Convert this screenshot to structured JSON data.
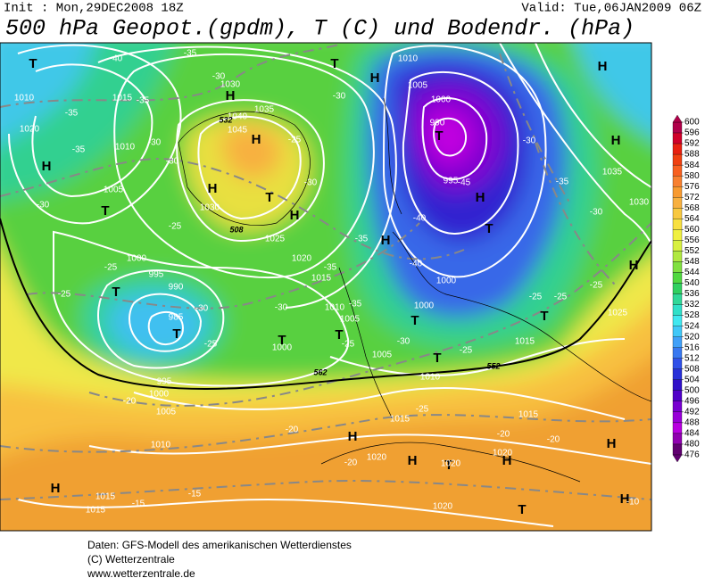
{
  "header": {
    "init": "Init : Mon,29DEC2008 18Z",
    "valid": "Valid: Tue,06JAN2009 06Z",
    "title": "500 hPa Geopot.(gpdm), T (C) und Bodendr. (hPa)"
  },
  "colorbar": {
    "ticks": [
      600,
      596,
      592,
      588,
      584,
      580,
      576,
      572,
      568,
      564,
      560,
      556,
      552,
      548,
      544,
      540,
      536,
      532,
      528,
      524,
      520,
      516,
      512,
      508,
      504,
      500,
      496,
      492,
      488,
      484,
      480,
      476
    ],
    "colors": [
      "#b0004a",
      "#d0002a",
      "#e82010",
      "#f04010",
      "#f86020",
      "#f88030",
      "#f89a30",
      "#f8b040",
      "#f8c840",
      "#f8e040",
      "#f0f040",
      "#d8f040",
      "#b0e840",
      "#80e040",
      "#50d840",
      "#30d060",
      "#30d898",
      "#30e0c8",
      "#40e8f0",
      "#40c8f8",
      "#40a0f8",
      "#3878f0",
      "#3050e8",
      "#2830d8",
      "#3010c8",
      "#5000c8",
      "#7800d0",
      "#9800d8",
      "#b800e0",
      "#9000b0",
      "#600070"
    ]
  },
  "map": {
    "labels": [
      "T",
      "T",
      "H",
      "H",
      "H",
      "H",
      "T",
      "H",
      "H",
      "H",
      "T",
      "H",
      "T",
      "H",
      "T",
      "H",
      "H",
      "T",
      "T",
      "T",
      "T",
      "T",
      "T",
      "T",
      "H",
      "H",
      "H",
      "H",
      "T",
      "H",
      "T",
      "H",
      "1010",
      "1015",
      "1020",
      "1010",
      "1005",
      "1000",
      "995",
      "990",
      "985",
      "1030",
      "1035",
      "1040",
      "1045",
      "1030",
      "1025",
      "1020",
      "1015",
      "1010",
      "1005",
      "1000",
      "1005",
      "1010",
      "1010",
      "1005",
      "1000",
      "990",
      "995",
      "1000",
      "1000",
      "1035",
      "1030",
      "1025",
      "1015",
      "995",
      "1000",
      "1005",
      "1010",
      "1015",
      "1015",
      "1020",
      "1020",
      "1020",
      "1015",
      "1015",
      "1020",
      "562",
      "552",
      "508",
      "532",
      "-40",
      "-35",
      "-30",
      "-35",
      "-35",
      "-35",
      "-30",
      "-30",
      "-30",
      "-25",
      "-25",
      "-25",
      "-30",
      "-25",
      "-30",
      "-35",
      "-35",
      "-40",
      "-40",
      "-35",
      "-25",
      "-30",
      "-25",
      "-25",
      "-25",
      "-25",
      "-30",
      "-35",
      "-30",
      "-30",
      "-30",
      "-25",
      "-45",
      "-25",
      "-20",
      "-20",
      "-20",
      "-20",
      "-15",
      "-15",
      "-10",
      "-20"
    ]
  },
  "footer": [
    "Daten: GFS-Modell des amerikanischen Wetterdienstes",
    "(C) Wetterzentrale",
    "www.wetterzentrale.de"
  ]
}
